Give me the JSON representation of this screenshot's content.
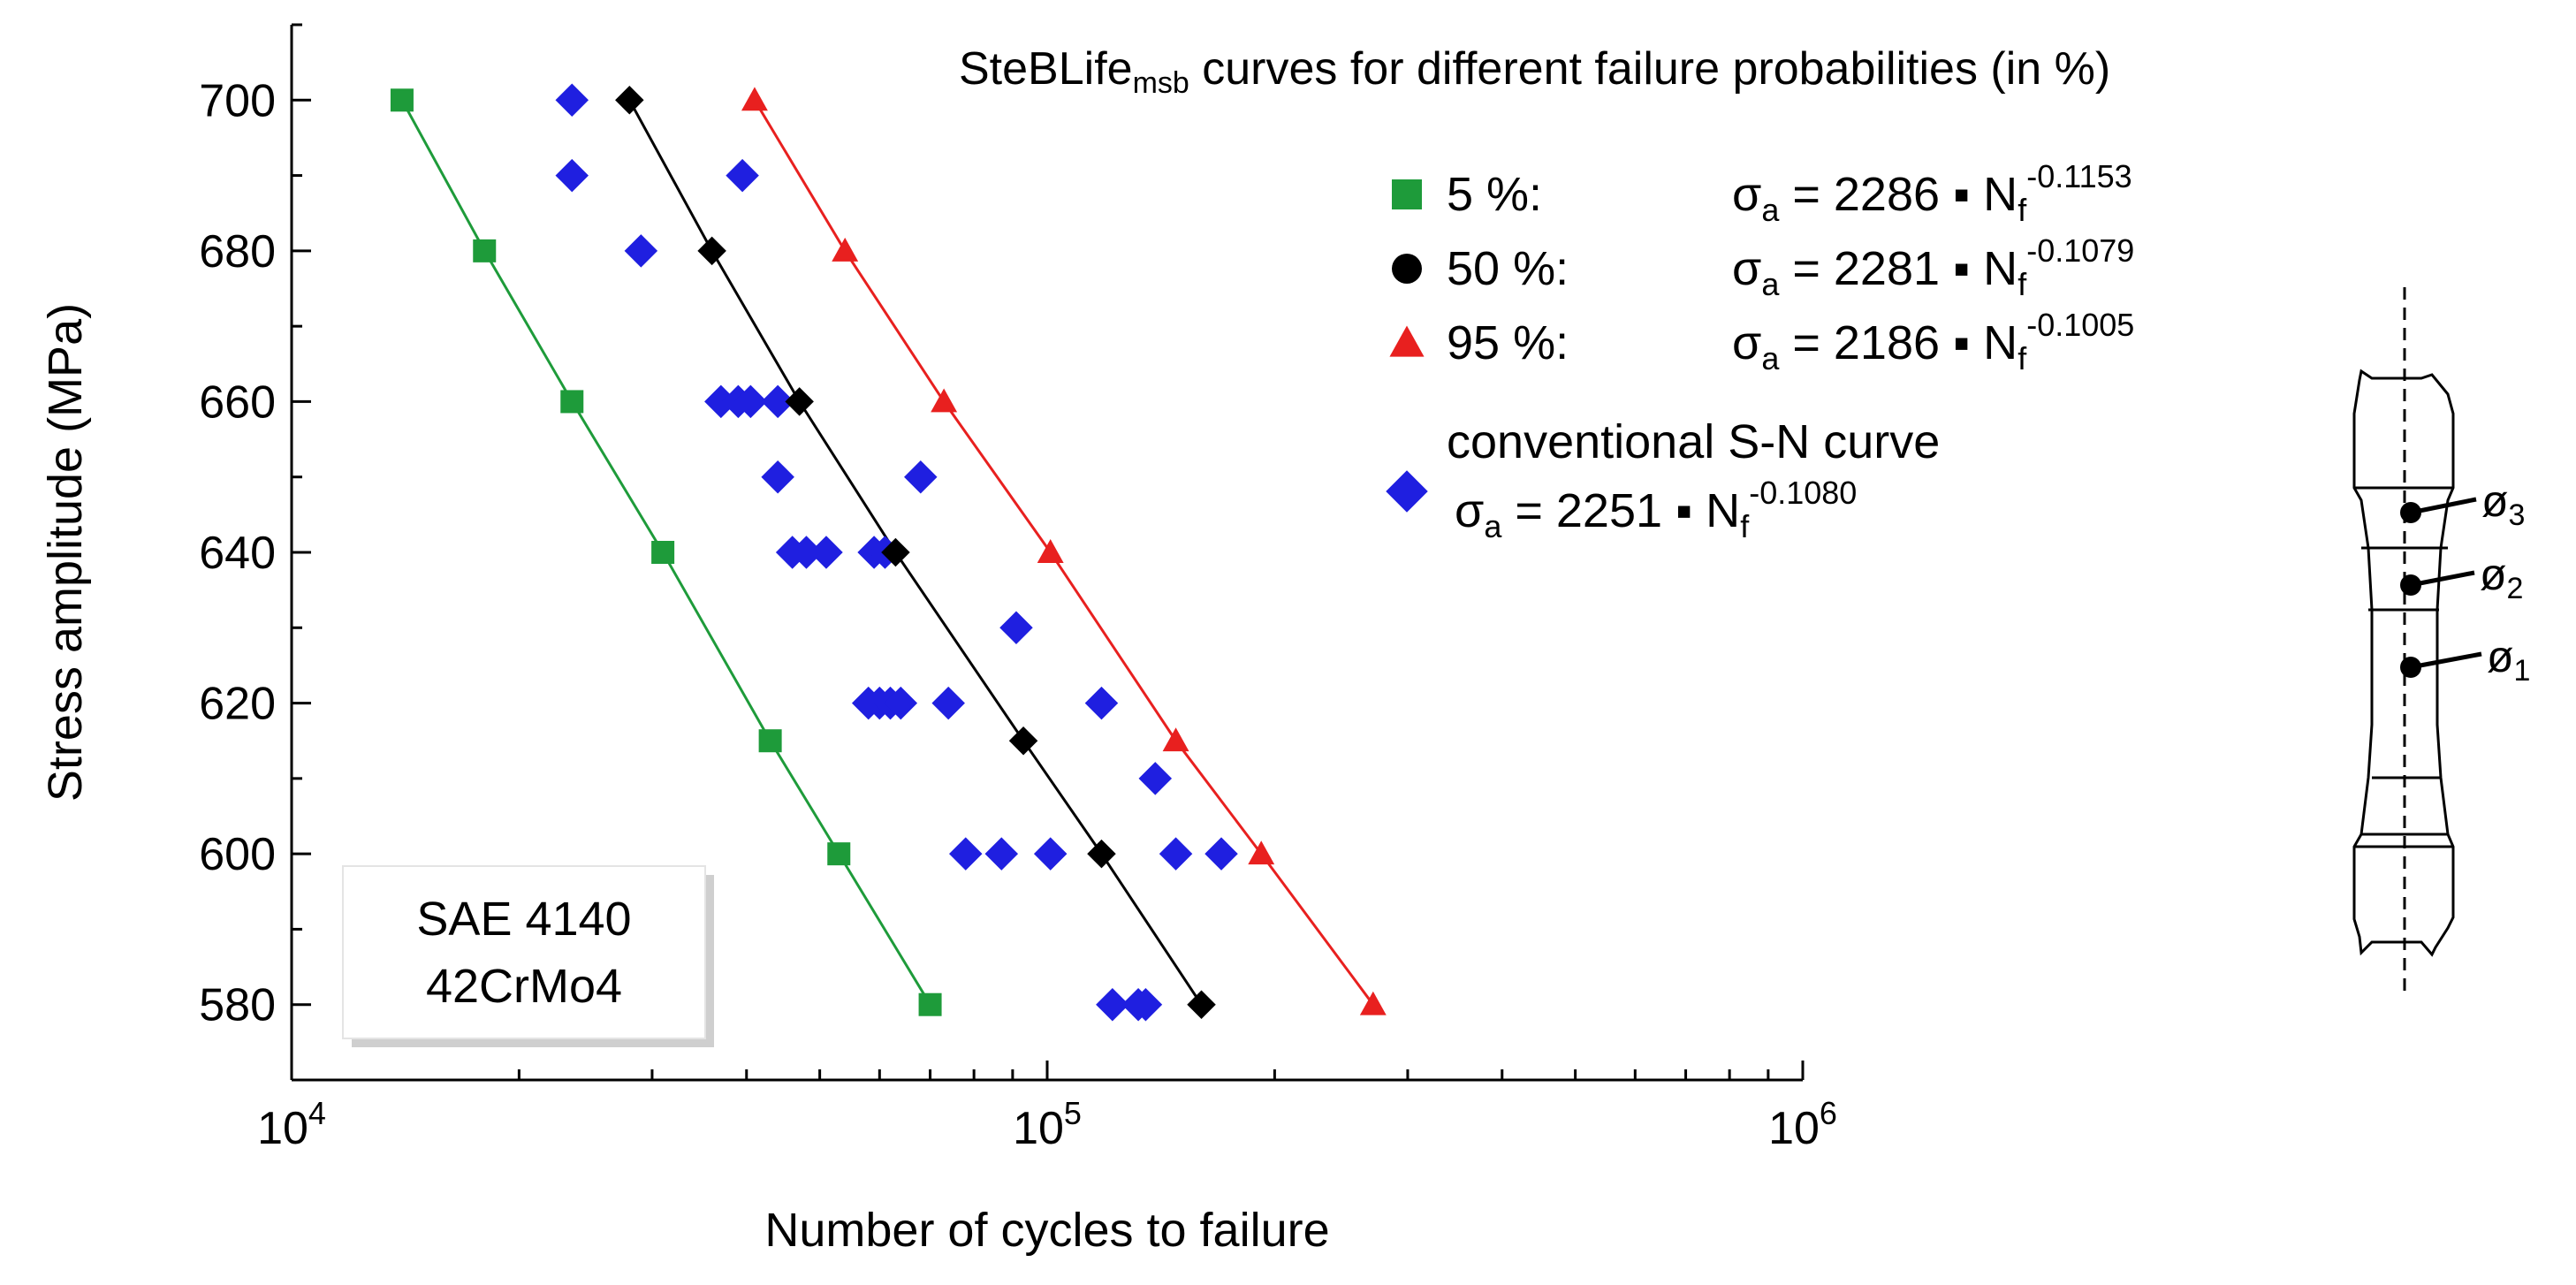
{
  "chart_data": {
    "type": "scatter",
    "title_main": "SteBLife",
    "title_sub": "msb",
    "title_rest": " curves for different failure probabilities (in %)",
    "xlabel": "Number of cycles to failure",
    "ylabel": "Stress amplitude (MPa)",
    "x_scale": "log",
    "xlim": [
      10000,
      1000000
    ],
    "ylim": [
      570,
      710
    ],
    "x_ticks": [
      {
        "value": 10000,
        "base": "10",
        "exp": "4"
      },
      {
        "value": 100000,
        "base": "10",
        "exp": "5"
      },
      {
        "value": 1000000,
        "base": "10",
        "exp": "6"
      }
    ],
    "y_ticks": [
      580,
      600,
      620,
      640,
      660,
      680,
      700
    ],
    "material_label_line1": "SAE 4140",
    "material_label_line2": "42CrMo4",
    "series": [
      {
        "name": "5 %",
        "marker": "square",
        "color": "#1e9b3a",
        "line": true,
        "equation": {
          "lhs": "σ",
          "lhs_sub": "a",
          "coef": " = 2286 ▪ N",
          "n_sub": "f",
          "exp": "-0.1153"
        },
        "points": [
          [
            14000,
            700
          ],
          [
            18000,
            680
          ],
          [
            23500,
            660
          ],
          [
            31000,
            640
          ],
          [
            43000,
            615
          ],
          [
            53000,
            600
          ],
          [
            70000,
            580
          ]
        ]
      },
      {
        "name": "50 %",
        "marker": "diamond",
        "legend_marker": "circle",
        "color": "#000000",
        "line": true,
        "equation": {
          "lhs": "σ",
          "lhs_sub": "a",
          "coef": " = 2281 ▪ N",
          "n_sub": "f",
          "exp": "-0.1079"
        },
        "points": [
          [
            28000,
            700
          ],
          [
            36000,
            680
          ],
          [
            47000,
            660
          ],
          [
            63000,
            640
          ],
          [
            93000,
            615
          ],
          [
            118000,
            600
          ],
          [
            160000,
            580
          ]
        ]
      },
      {
        "name": "95 %",
        "marker": "triangle",
        "color": "#e8201f",
        "line": true,
        "equation": {
          "lhs": "σ",
          "lhs_sub": "a",
          "coef": " = 2186 ▪ N",
          "n_sub": "f",
          "exp": "-0.1005"
        },
        "points": [
          [
            41000,
            700
          ],
          [
            54000,
            680
          ],
          [
            73000,
            660
          ],
          [
            101000,
            640
          ],
          [
            148000,
            615
          ],
          [
            192000,
            600
          ],
          [
            270000,
            580
          ]
        ]
      },
      {
        "name": "conventional S-N curve",
        "marker": "diamond",
        "color": "#1f1fe0",
        "line": false,
        "equation": {
          "lhs": "σ",
          "lhs_sub": "a",
          "coef": " = 2251 ▪ N",
          "n_sub": "f",
          "exp": "-0.1080"
        },
        "points": [
          [
            23500,
            700
          ],
          [
            23500,
            690
          ],
          [
            39500,
            690
          ],
          [
            29000,
            680
          ],
          [
            37000,
            660
          ],
          [
            39000,
            660
          ],
          [
            40500,
            660
          ],
          [
            44000,
            660
          ],
          [
            44000,
            650
          ],
          [
            68000,
            650
          ],
          [
            46000,
            640
          ],
          [
            48000,
            640
          ],
          [
            51000,
            640
          ],
          [
            59000,
            640
          ],
          [
            61000,
            640
          ],
          [
            91000,
            630
          ],
          [
            58000,
            620
          ],
          [
            60000,
            620
          ],
          [
            62000,
            620
          ],
          [
            64000,
            620
          ],
          [
            74000,
            620
          ],
          [
            118000,
            620
          ],
          [
            139000,
            610
          ],
          [
            78000,
            600
          ],
          [
            87000,
            600
          ],
          [
            101000,
            600
          ],
          [
            148000,
            600
          ],
          [
            170000,
            600
          ],
          [
            122000,
            580
          ],
          [
            132000,
            580
          ],
          [
            135000,
            580
          ]
        ]
      }
    ]
  },
  "specimen": {
    "labels": [
      {
        "symbol": "ø",
        "sub": "3"
      },
      {
        "symbol": "ø",
        "sub": "2"
      },
      {
        "symbol": "ø",
        "sub": "1"
      }
    ]
  }
}
